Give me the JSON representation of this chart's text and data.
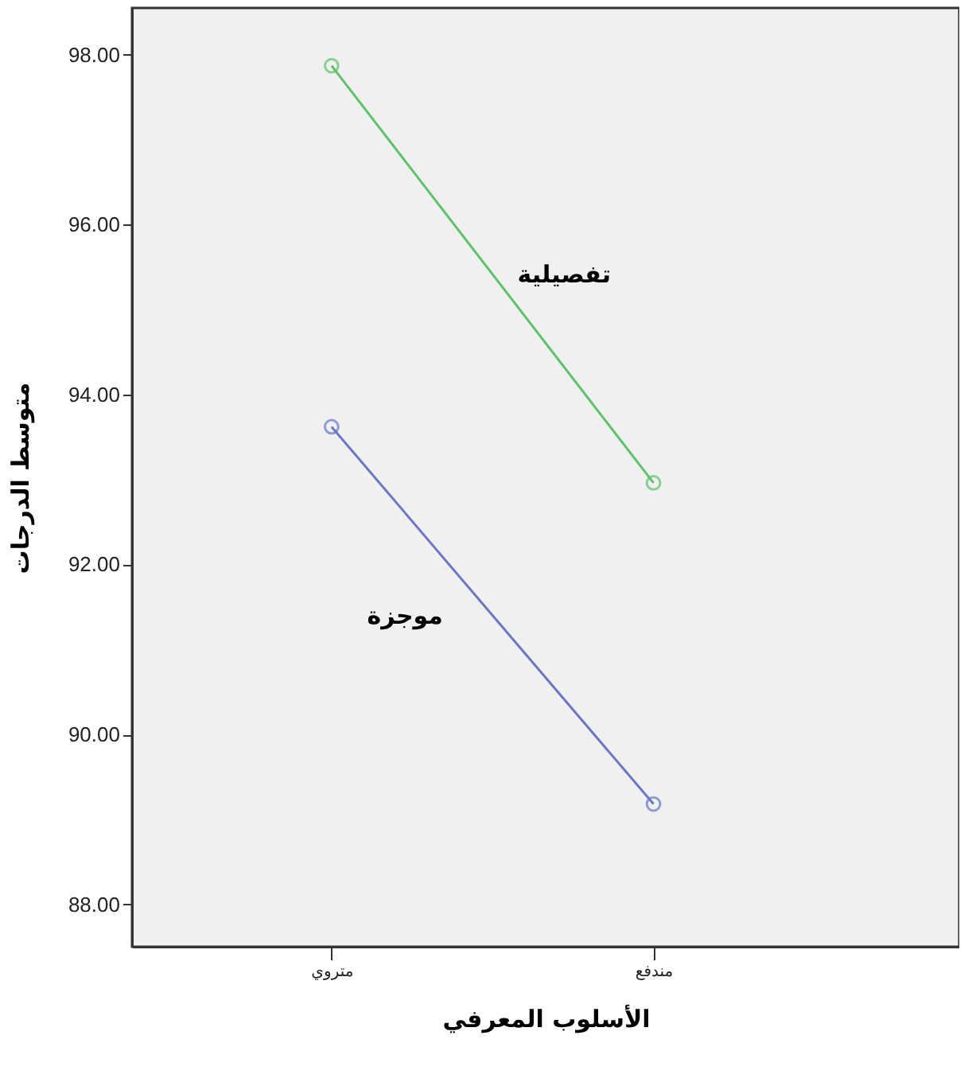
{
  "chart_data": {
    "type": "line",
    "xlabel": "الأسلوب المعرفي",
    "ylabel": "متوسط الدرجات",
    "categories": [
      "متروي",
      "مندفع"
    ],
    "ylim": [
      87.5,
      98.55
    ],
    "yticks": [
      {
        "value": 88,
        "label": "88.00"
      },
      {
        "value": 90,
        "label": "90.00"
      },
      {
        "value": 92,
        "label": "92.00"
      },
      {
        "value": 94,
        "label": "94.00"
      },
      {
        "value": 96,
        "label": "96.00"
      },
      {
        "value": 98,
        "label": "98.00"
      }
    ],
    "marker": "circle",
    "grid": false,
    "series": [
      {
        "name": "تفصيلية",
        "color": "#5dc26b",
        "values": [
          97.87,
          92.96
        ]
      },
      {
        "name": "موجزة",
        "color": "#6a78c2",
        "values": [
          93.62,
          89.18
        ]
      }
    ]
  }
}
